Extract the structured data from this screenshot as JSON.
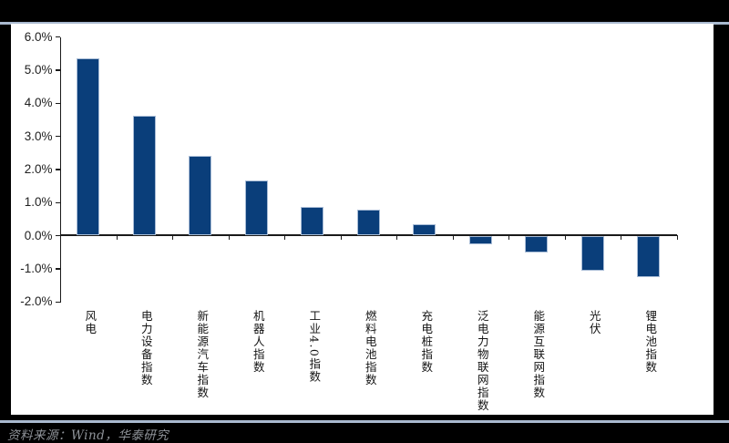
{
  "page": {
    "background_color": "#000000",
    "panel_color": "#ffffff",
    "accent_line_color": "#a9b9cf"
  },
  "footer": {
    "source_label": "资料来源：Wind，华泰研究",
    "text_color": "#8f9399"
  },
  "chart_data": {
    "type": "bar",
    "title": "",
    "xlabel": "",
    "ylabel": "",
    "categories": [
      "风电",
      "电力设备指数",
      "新能源汽车指数",
      "机器人指数",
      "工业4.0指数",
      "燃料电池指数",
      "充电桩指数",
      "泛电力物联网指数",
      "能源互联网指数",
      "光伏",
      "锂电池指数"
    ],
    "values": [
      5.35,
      3.6,
      2.4,
      1.65,
      0.85,
      0.78,
      0.34,
      -0.25,
      -0.5,
      -1.05,
      -1.25
    ],
    "ylim": [
      -2.0,
      6.0
    ],
    "ytick_step": 1.0,
    "ytick_labels": [
      "6.0%",
      "5.0%",
      "4.0%",
      "3.0%",
      "2.0%",
      "1.0%",
      "0.0%",
      "-1.0%",
      "-2.0%"
    ],
    "ytick_values": [
      6,
      5,
      4,
      3,
      2,
      1,
      0,
      -1,
      -2
    ],
    "grid": false,
    "legend": "none",
    "bar_color": "#0a3e7a",
    "bar_border_color": "#a8bcd6",
    "axis_color": "#1a1a1a",
    "value_format": "percent"
  }
}
